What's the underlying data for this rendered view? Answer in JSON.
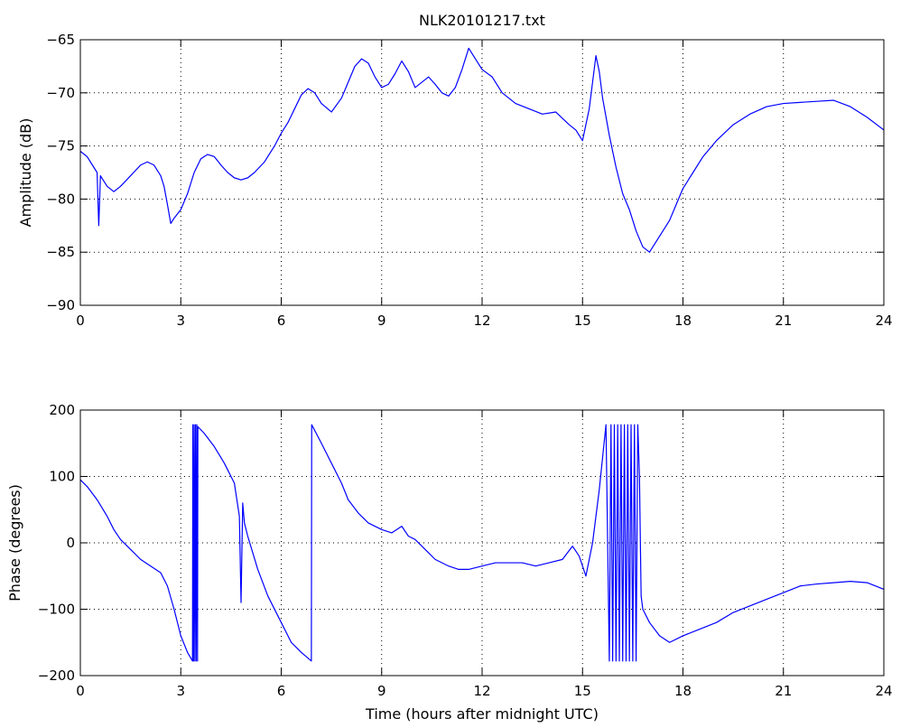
{
  "chart_data": [
    {
      "type": "line",
      "title": "NLK20101217.txt",
      "xlabel": "",
      "ylabel": "Amplitude (dB)",
      "xlim": [
        0,
        24
      ],
      "ylim": [
        -90,
        -65
      ],
      "xticks": [
        0,
        3,
        6,
        9,
        12,
        15,
        18,
        21,
        24
      ],
      "yticks": [
        -90,
        -85,
        -80,
        -75,
        -70,
        -65
      ],
      "grid": true,
      "color": "#0000ff",
      "series": [
        {
          "x": [
            0,
            0.2,
            0.4,
            0.5,
            0.55,
            0.6,
            0.8,
            1.0,
            1.2,
            1.5,
            1.8,
            2.0,
            2.2,
            2.4,
            2.5,
            2.6,
            2.7,
            2.8,
            3.0,
            3.2,
            3.4,
            3.6,
            3.8,
            4.0,
            4.2,
            4.4,
            4.6,
            4.8,
            5.0,
            5.2,
            5.5,
            5.8,
            6.0,
            6.2,
            6.4,
            6.6,
            6.8,
            7.0,
            7.2,
            7.5,
            7.8,
            8.0,
            8.2,
            8.4,
            8.6,
            8.8,
            9.0,
            9.2,
            9.4,
            9.6,
            9.8,
            10.0,
            10.2,
            10.4,
            10.6,
            10.8,
            11.0,
            11.2,
            11.4,
            11.6,
            11.8,
            12.0,
            12.3,
            12.6,
            13.0,
            13.4,
            13.8,
            14.2,
            14.6,
            14.8,
            15.0,
            15.2,
            15.4,
            15.5,
            15.6,
            15.8,
            16.0,
            16.2,
            16.4,
            16.6,
            16.8,
            17.0,
            17.2,
            17.4,
            17.6,
            17.8,
            18.0,
            18.3,
            18.6,
            19.0,
            19.5,
            20.0,
            20.5,
            21.0,
            21.5,
            22.0,
            22.5,
            23.0,
            23.5,
            24.0
          ],
          "y": [
            -75.5,
            -76.0,
            -77.0,
            -77.5,
            -82.5,
            -77.8,
            -78.8,
            -79.3,
            -78.8,
            -77.8,
            -76.8,
            -76.5,
            -76.8,
            -77.8,
            -78.8,
            -80.5,
            -82.3,
            -81.8,
            -81.0,
            -79.5,
            -77.5,
            -76.2,
            -75.8,
            -76.0,
            -76.8,
            -77.5,
            -78.0,
            -78.2,
            -78.0,
            -77.5,
            -76.5,
            -75.0,
            -73.8,
            -72.8,
            -71.5,
            -70.2,
            -69.6,
            -70.0,
            -71.0,
            -71.8,
            -70.5,
            -69.0,
            -67.5,
            -66.8,
            -67.2,
            -68.5,
            -69.5,
            -69.2,
            -68.2,
            -67.0,
            -68.0,
            -69.5,
            -69.0,
            -68.5,
            -69.2,
            -70.0,
            -70.3,
            -69.5,
            -67.8,
            -65.8,
            -66.8,
            -67.8,
            -68.5,
            -70.0,
            -71.0,
            -71.5,
            -72.0,
            -71.8,
            -73.0,
            -73.5,
            -74.5,
            -71.5,
            -66.5,
            -68.0,
            -70.5,
            -74.0,
            -77.0,
            -79.5,
            -81.0,
            -83.0,
            -84.5,
            -85.0,
            -84.0,
            -83.0,
            -82.0,
            -80.5,
            -79.0,
            -77.5,
            -76.0,
            -74.5,
            -73.0,
            -72.0,
            -71.3,
            -71.0,
            -70.9,
            -70.8,
            -70.7,
            -71.3,
            -72.3,
            -73.5
          ]
        }
      ]
    },
    {
      "type": "line",
      "title": "",
      "xlabel": "Time (hours after midnight UTC)",
      "ylabel": "Phase (degrees)",
      "xlim": [
        0,
        24
      ],
      "ylim": [
        -200,
        200
      ],
      "xticks": [
        0,
        3,
        6,
        9,
        12,
        15,
        18,
        21,
        24
      ],
      "yticks": [
        -200,
        -100,
        0,
        100,
        200
      ],
      "grid": true,
      "color": "#0000ff",
      "series": [
        {
          "x": [
            0,
            0.2,
            0.5,
            0.8,
            1.0,
            1.2,
            1.5,
            1.8,
            2.1,
            2.4,
            2.6,
            2.8,
            3.0,
            3.2,
            3.35,
            3.36,
            3.38,
            3.4,
            3.42,
            3.44,
            3.46,
            3.48,
            3.5,
            3.51,
            3.7,
            4.0,
            4.3,
            4.6,
            4.75,
            4.8,
            4.85,
            4.9,
            5.0,
            5.3,
            5.6,
            6.0,
            6.3,
            6.6,
            6.9,
            6.91,
            7.2,
            7.5,
            7.8,
            8.0,
            8.3,
            8.6,
            9.0,
            9.3,
            9.6,
            9.8,
            10.0,
            10.3,
            10.6,
            11.0,
            11.3,
            11.6,
            12.0,
            12.4,
            12.8,
            13.2,
            13.6,
            14.0,
            14.4,
            14.7,
            14.9,
            15.1,
            15.3,
            15.5,
            15.7,
            15.8,
            15.85,
            15.9,
            15.95,
            16.0,
            16.05,
            16.1,
            16.15,
            16.2,
            16.25,
            16.3,
            16.35,
            16.4,
            16.45,
            16.5,
            16.55,
            16.6,
            16.65,
            16.7,
            16.75,
            16.8,
            17.0,
            17.3,
            17.6,
            18.0,
            18.5,
            19.0,
            19.5,
            20.0,
            20.5,
            21.0,
            21.5,
            22.0,
            22.5,
            23.0,
            23.5,
            24.0
          ],
          "y": [
            95,
            85,
            65,
            40,
            20,
            5,
            -10,
            -25,
            -35,
            -45,
            -65,
            -100,
            -140,
            -165,
            -178,
            178,
            -178,
            178,
            -178,
            178,
            -178,
            178,
            -178,
            175,
            165,
            145,
            120,
            90,
            40,
            -90,
            60,
            30,
            10,
            -40,
            -80,
            -120,
            -150,
            -165,
            -178,
            178,
            150,
            120,
            90,
            65,
            45,
            30,
            20,
            15,
            25,
            10,
            5,
            -10,
            -25,
            -35,
            -40,
            -40,
            -35,
            -30,
            -30,
            -30,
            -35,
            -30,
            -25,
            -5,
            -20,
            -50,
            0,
            80,
            178,
            -178,
            178,
            -178,
            178,
            -178,
            178,
            -178,
            178,
            -178,
            178,
            -178,
            178,
            -178,
            178,
            -178,
            178,
            -178,
            178,
            100,
            -80,
            -100,
            -120,
            -140,
            -150,
            -140,
            -130,
            -120,
            -105,
            -95,
            -85,
            -75,
            -65,
            -62,
            -60,
            -58,
            -60,
            -70
          ]
        }
      ]
    }
  ]
}
